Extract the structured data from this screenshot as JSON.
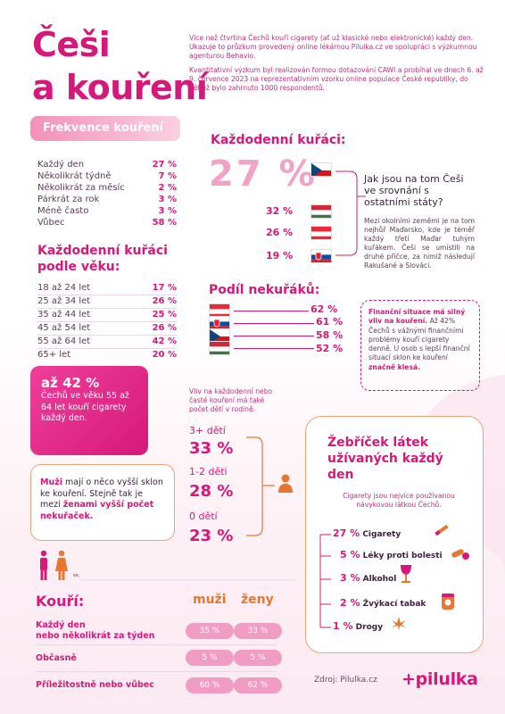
{
  "title_line1": "Češi",
  "title_line2": "a kouření",
  "intro_p1": "Více než čtvrtina Čechů kouří cigarety (ať už klasické nebo elektronické) každý den. Ukazuje to průzkum provedený online lékárnou Pilulka.cz ve spolupráci s výzkumnou agenturou Behavio.",
  "intro_p2": "Kvantitativní výzkum byl realizován formou dotazování CAWI a probíhal ve dnech 6. až 9. července 2023 na reprezentativním vzorku online populace České republiky, do něhož bylo zahrnuto 1000 respondentů.",
  "frequency": {
    "heading": "Frekvence kouření",
    "items": [
      {
        "label": "Každý den",
        "value": "27 %"
      },
      {
        "label": "Několikrát týdně",
        "value": "7 %"
      },
      {
        "label": "Několikrát za měsíc",
        "value": "2 %"
      },
      {
        "label": "Párkrát za rok",
        "value": "3 %"
      },
      {
        "label": "Méně často",
        "value": "3 %"
      },
      {
        "label": "Vůbec",
        "value": "58 %"
      }
    ]
  },
  "by_age": {
    "heading_line1": "Každodenní kuřáci",
    "heading_line2": "podle věku:",
    "items": [
      {
        "label": "18 až 24 let",
        "value": "17 %"
      },
      {
        "label": "25 až 34 let",
        "value": "26 %"
      },
      {
        "label": "35 až 44 let",
        "value": "25 %"
      },
      {
        "label": "45 až 54 let",
        "value": "26 %"
      },
      {
        "label": "55 až 64 let",
        "value": "42 %"
      },
      {
        "label": "65+ let",
        "value": "20 %"
      }
    ]
  },
  "box42": {
    "big": "až 42 %",
    "text": "Čechů ve věku 55 až 64 let kouří cigarety každý den."
  },
  "men_box": {
    "part1": "Muži",
    "part2": " mají o něco vyšší sklon ke kouření. Stejně tak je mezi ",
    "part3": "ženami",
    "part4": "vyšší počet nekuřaček."
  },
  "daily": {
    "heading": "Každodenní kuřáci:",
    "cz_value": "27 %",
    "others": [
      {
        "value": "32 %",
        "flag": "hungary"
      },
      {
        "value": "26 %",
        "flag": "austria"
      },
      {
        "value": "19 %",
        "flag": "slovakia"
      }
    ],
    "question": "Jak jsou na tom Češi ve srovnání s ostatními státy?",
    "answer": "Mezi okolními zeměmi je na tom nejhůř Maďarsko, kde je téměř každý třetí Maďar tuhým kuřákem. Češi se umístili na druhé příčce, za nimiž následují Rakušané a Slováci."
  },
  "nonsmokers": {
    "heading": "Podíl nekuřáků:",
    "items": [
      {
        "value": "62 %",
        "flag": "austria"
      },
      {
        "value": "61 %",
        "flag": "slovakia"
      },
      {
        "value": "58 %",
        "flag": "czech"
      },
      {
        "value": "52 %",
        "flag": "hungary"
      }
    ]
  },
  "finance": {
    "bold1": "Finanční situace má silný vliv na kouření.",
    "text1": " Až 42% Čechů s vážnými finančními problémy kouří cigarety denně. U osob s lepší finanční situací sklon ke kouření ",
    "bold2": "značně klesá."
  },
  "kids": {
    "note": "Vliv na každodenní nebo časté kouření má také počet dětí v rodině.",
    "items": [
      {
        "label": "3+ dětí",
        "value": "33 %"
      },
      {
        "label": "1-2 děti",
        "value": "28 %"
      },
      {
        "label": "0 dětí",
        "value": "23 %"
      }
    ]
  },
  "ladder": {
    "heading": "Žebříček látek užívaných každý den",
    "subtitle": "Cigarety jsou nejvíce používanou návykovou látkou Čechů.",
    "items": [
      {
        "value": "27 %",
        "label": "Cigarety",
        "icon": "cigarette-icon"
      },
      {
        "value": "5 %",
        "label": "Léky proti bolesti",
        "icon": "pills-icon"
      },
      {
        "value": "3 %",
        "label": "Alkohol",
        "icon": "wine-glass-icon"
      },
      {
        "value": "2 %",
        "label": "Žvýkací tabak",
        "icon": "tobacco-tin-icon"
      },
      {
        "value": "1 %",
        "label": "Drogy",
        "icon": "cannabis-leaf-icon"
      }
    ]
  },
  "smoking_table": {
    "heading": "Kouří:",
    "col_men": "muži",
    "col_women": "ženy",
    "vs": "vs.",
    "rows": [
      {
        "label_line1": "Každý den",
        "label_line2": "nebo několikrát za týden",
        "men": "35 %",
        "women": "33 %"
      },
      {
        "label_line1": "Občasně",
        "label_line2": "",
        "men": "5 %",
        "women": "5 %"
      },
      {
        "label_line1": "Příležitostně nebo vůbec",
        "label_line2": "",
        "men": "60 %",
        "women": "62 %"
      }
    ]
  },
  "source": "Zdroj: Pilulka.cz",
  "logo": "+pilulka",
  "colors": {
    "magenta": "#d6187a",
    "orange": "#e8762f",
    "pink_light": "#f19cc2"
  }
}
